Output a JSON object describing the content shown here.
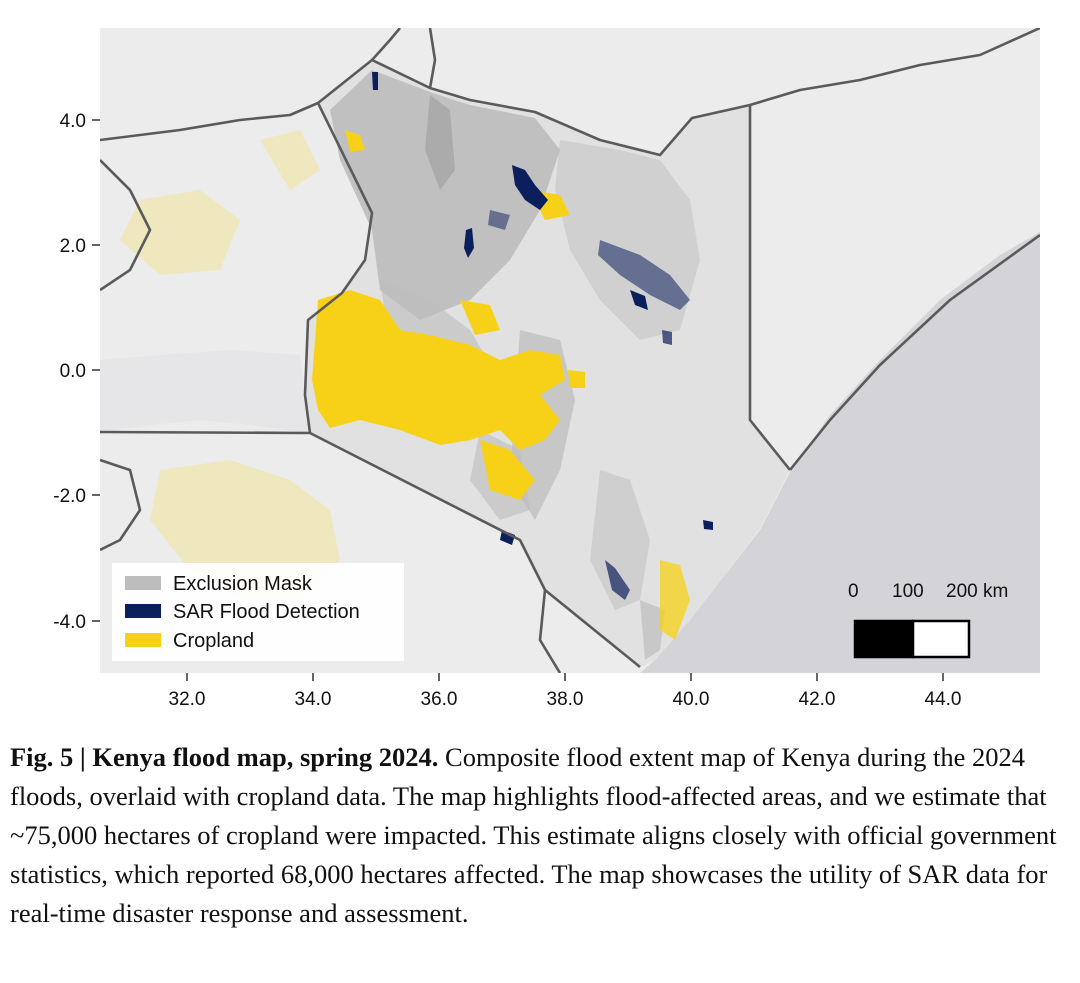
{
  "map": {
    "x_ticks": [
      "32.0",
      "34.0",
      "36.0",
      "38.0",
      "40.0",
      "42.0",
      "44.0"
    ],
    "y_ticks": [
      "4.0",
      "2.0",
      "0.0",
      "-2.0",
      "-4.0"
    ],
    "x_tick_values": [
      32.0,
      34.0,
      36.0,
      38.0,
      40.0,
      42.0,
      44.0
    ],
    "y_tick_values": [
      4.0,
      2.0,
      0.0,
      -2.0,
      -4.0
    ],
    "lon_range": [
      30.6,
      45.6
    ],
    "lat_range": [
      -4.82,
      5.5
    ],
    "legend": [
      {
        "label": "Exclusion Mask",
        "color": "#bdbdbd"
      },
      {
        "label": "SAR Flood Detection",
        "color": "#0b1f5c"
      },
      {
        "label": "Cropland",
        "color": "#f7d117"
      }
    ],
    "scale_bar": {
      "labels": [
        "0",
        "100",
        "200 km"
      ]
    },
    "colors": {
      "ocean": "#d4d4d8",
      "land": "#ececec",
      "kenya": "#e1e1e1",
      "border": "#5a5a5a"
    }
  },
  "caption": {
    "label": "Fig. 5 | Kenya flood map, spring 2024.",
    "text": " Composite flood extent map of Kenya during the 2024 floods, overlaid with cropland data. The map highlights flood-affected areas, and we estimate that ~75,000 hectares of cropland were impacted. This estimate aligns closely with official government statistics, which reported 68,000 hectares affected. The map showcases the utility of SAR data for real-time disaster response and assessment."
  }
}
